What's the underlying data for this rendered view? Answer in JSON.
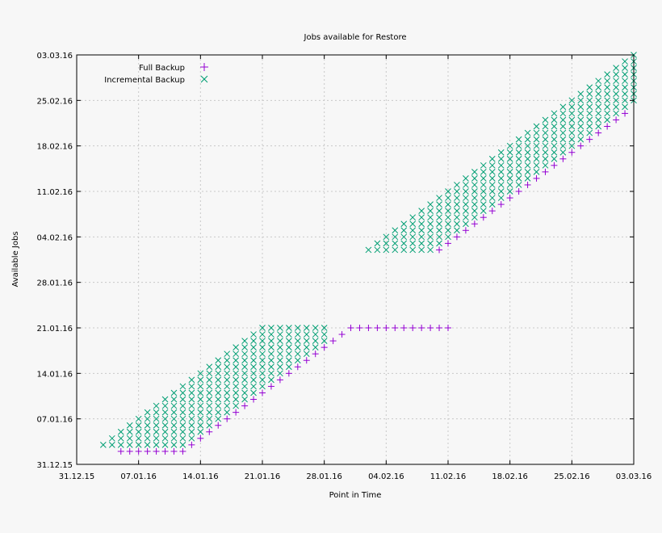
{
  "chart_data": {
    "type": "scatter",
    "title": "Jobs available for Restore",
    "xlabel": "Point in Time",
    "ylabel": "Available Jobs",
    "x_ticks": [
      "31.12.15",
      "07.01.16",
      "14.01.16",
      "21.01.16",
      "28.01.16",
      "04.02.16",
      "11.02.16",
      "18.02.16",
      "25.02.16",
      "03.03.16"
    ],
    "y_ticks": [
      "31.12.15",
      "07.01.16",
      "14.01.16",
      "21.01.16",
      "28.01.16",
      "04.02.16",
      "11.02.16",
      "18.02.16",
      "25.02.16",
      "03.03.16"
    ],
    "x_axis_start": "31.12.15",
    "x_axis_end": "03.03.16",
    "y_axis_start": "31.12.15",
    "y_axis_end": "03.03.16",
    "grid": true,
    "legend_position": "top-left",
    "colors": {
      "full": "#9400d3",
      "incremental": "#009e73"
    },
    "series": [
      {
        "name": "Full Backup",
        "marker": "plus",
        "points": [
          [
            "05.01.16",
            "02.01.16"
          ],
          [
            "06.01.16",
            "02.01.16"
          ],
          [
            "07.01.16",
            "02.01.16"
          ],
          [
            "08.01.16",
            "02.01.16"
          ],
          [
            "09.01.16",
            "02.01.16"
          ],
          [
            "10.01.16",
            "02.01.16"
          ],
          [
            "11.01.16",
            "02.01.16"
          ],
          [
            "12.01.16",
            "02.01.16"
          ],
          [
            "13.01.16",
            "03.01.16"
          ],
          [
            "14.01.16",
            "04.01.16"
          ],
          [
            "15.01.16",
            "05.01.16"
          ],
          [
            "16.01.16",
            "06.01.16"
          ],
          [
            "17.01.16",
            "07.01.16"
          ],
          [
            "18.01.16",
            "08.01.16"
          ],
          [
            "19.01.16",
            "09.01.16"
          ],
          [
            "20.01.16",
            "10.01.16"
          ],
          [
            "21.01.16",
            "11.01.16"
          ],
          [
            "22.01.16",
            "12.01.16"
          ],
          [
            "23.01.16",
            "13.01.16"
          ],
          [
            "24.01.16",
            "14.01.16"
          ],
          [
            "25.01.16",
            "15.01.16"
          ],
          [
            "26.01.16",
            "16.01.16"
          ],
          [
            "27.01.16",
            "17.01.16"
          ],
          [
            "28.01.16",
            "18.01.16"
          ],
          [
            "29.01.16",
            "19.01.16"
          ],
          [
            "30.01.16",
            "20.01.16"
          ],
          [
            "31.01.16",
            "21.01.16"
          ],
          [
            "01.02.16",
            "21.01.16"
          ],
          [
            "02.02.16",
            "21.01.16"
          ],
          [
            "03.02.16",
            "21.01.16"
          ],
          [
            "04.02.16",
            "21.01.16"
          ],
          [
            "05.02.16",
            "21.01.16"
          ],
          [
            "06.02.16",
            "21.01.16"
          ],
          [
            "07.02.16",
            "21.01.16"
          ],
          [
            "08.02.16",
            "21.01.16"
          ],
          [
            "09.02.16",
            "21.01.16"
          ],
          [
            "10.02.16",
            "21.01.16"
          ],
          [
            "11.02.16",
            "21.01.16"
          ],
          [
            "10.02.16",
            "02.02.16"
          ],
          [
            "11.02.16",
            "03.02.16"
          ],
          [
            "12.02.16",
            "04.02.16"
          ],
          [
            "13.02.16",
            "05.02.16"
          ],
          [
            "14.02.16",
            "06.02.16"
          ],
          [
            "15.02.16",
            "07.02.16"
          ],
          [
            "16.02.16",
            "08.02.16"
          ],
          [
            "17.02.16",
            "09.02.16"
          ],
          [
            "18.02.16",
            "10.02.16"
          ],
          [
            "19.02.16",
            "11.02.16"
          ],
          [
            "20.02.16",
            "12.02.16"
          ],
          [
            "21.02.16",
            "13.02.16"
          ],
          [
            "22.02.16",
            "14.02.16"
          ],
          [
            "23.02.16",
            "15.02.16"
          ],
          [
            "24.02.16",
            "16.02.16"
          ],
          [
            "25.02.16",
            "17.02.16"
          ],
          [
            "26.02.16",
            "18.02.16"
          ],
          [
            "27.02.16",
            "19.02.16"
          ],
          [
            "28.02.16",
            "20.02.16"
          ],
          [
            "29.02.16",
            "21.02.16"
          ],
          [
            "01.03.16",
            "22.02.16"
          ],
          [
            "02.03.16",
            "23.02.16"
          ]
        ]
      },
      {
        "name": "Incremental Backup",
        "marker": "cross",
        "segments": [
          {
            "x_from": "01.01.16",
            "x_to": "20.01.16",
            "y_low_rule": "diagonal_minus_9_floor_03.01.16",
            "y_high_rule": "diagonal_capped_21.01.16"
          },
          {
            "x_from": "21.01.16",
            "x_to": "28.01.16",
            "y_low_rule": "diagonal_minus_9",
            "y_high": "21.01.16"
          },
          {
            "x_from": "02.02.16",
            "x_to": "03.03.16",
            "y_low_rule": "diagonal_minus_7_floor_02.02.16",
            "y_high_rule": "diagonal"
          }
        ]
      }
    ]
  }
}
